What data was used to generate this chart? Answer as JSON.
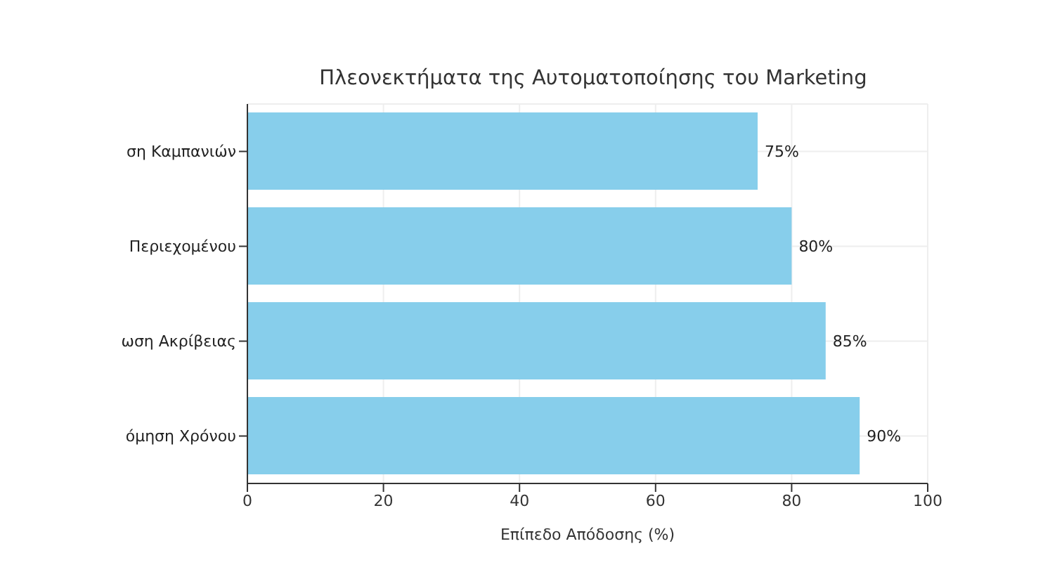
{
  "chart_data": {
    "type": "bar",
    "orientation": "horizontal",
    "title": "Πλεονεκτήματα της Αυτοματοποίησης του Marketing",
    "xlabel": "Επίπεδο Απόδοσης (%)",
    "categories": [
      "ση Καμπανιών",
      "Περιεχομένου",
      "ωση Ακρίβειας",
      "όμηση Χρόνου"
    ],
    "values": [
      75,
      80,
      85,
      90
    ],
    "value_labels": [
      "75%",
      "80%",
      "85%",
      "90%"
    ],
    "color": "#87ceeb",
    "xlim": [
      0,
      100
    ],
    "xticks": [
      0,
      20,
      40,
      60,
      80,
      100
    ],
    "grid": true
  }
}
